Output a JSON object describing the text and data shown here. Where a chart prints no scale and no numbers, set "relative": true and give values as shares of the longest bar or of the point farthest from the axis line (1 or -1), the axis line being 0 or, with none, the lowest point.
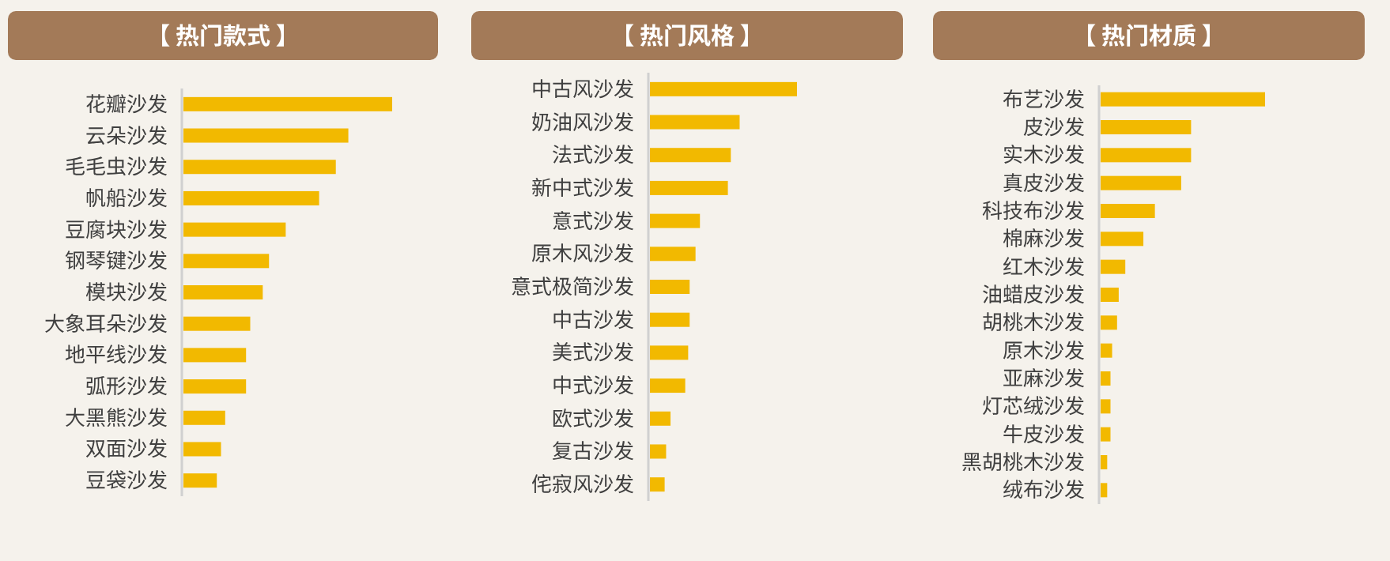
{
  "chart_data": [
    {
      "type": "bar",
      "orientation": "horizontal",
      "relative": true,
      "title": "【 热门款式 】",
      "color": "#f2b900",
      "categories": [
        "花瓣沙发",
        "云朵沙发",
        "毛毛虫沙发",
        "帆船沙发",
        "豆腐块沙发",
        "钢琴键沙发",
        "模块沙发",
        "大象耳朵沙发",
        "地平线沙发",
        "弧形沙发",
        "大黑熊沙发",
        "双面沙发",
        "豆袋沙发"
      ],
      "values": [
        1,
        0.79,
        0.73,
        0.65,
        0.49,
        0.41,
        0.38,
        0.32,
        0.3,
        0.3,
        0.2,
        0.18,
        0.16
      ]
    },
    {
      "type": "bar",
      "orientation": "horizontal",
      "relative": true,
      "title": "【 热门风格 】",
      "color": "#f2b900",
      "categories": [
        "中古风沙发",
        "奶油风沙发",
        "法式沙发",
        "新中式沙发",
        "意式沙发",
        "原木风沙发",
        "意式极简沙发",
        "中古沙发",
        "美式沙发",
        "中式沙发",
        "欧式沙发",
        "复古沙发",
        "侘寂风沙发"
      ],
      "values": [
        1,
        0.61,
        0.55,
        0.53,
        0.34,
        0.31,
        0.27,
        0.27,
        0.26,
        0.24,
        0.14,
        0.11,
        0.1
      ]
    },
    {
      "type": "bar",
      "orientation": "horizontal",
      "relative": true,
      "title": "【 热门材质 】",
      "color": "#f2b900",
      "categories": [
        "布艺沙发",
        "皮沙发",
        "实木沙发",
        "真皮沙发",
        "科技布沙发",
        "棉麻沙发",
        "红木沙发",
        "油蜡皮沙发",
        "胡桃木沙发",
        "原木沙发",
        "亚麻沙发",
        "灯芯绒沙发",
        "牛皮沙发",
        "黑胡桃木沙发",
        "绒布沙发"
      ],
      "values": [
        1,
        0.55,
        0.55,
        0.49,
        0.33,
        0.26,
        0.15,
        0.11,
        0.1,
        0.07,
        0.06,
        0.06,
        0.06,
        0.04,
        0.04
      ]
    }
  ]
}
